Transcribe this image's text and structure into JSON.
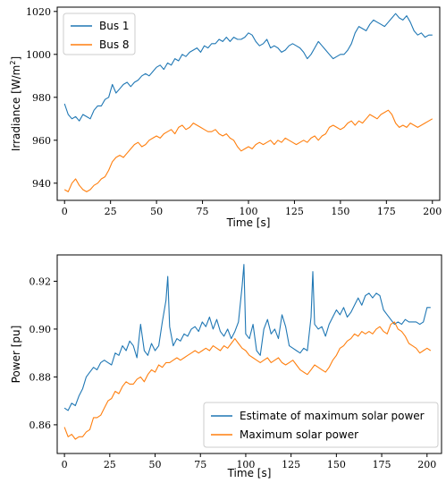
{
  "chart_data": [
    {
      "type": "line",
      "xlabel": "Time [s]",
      "ylabel": "Irradiance [W/m²]",
      "ylabel_main": "Irradiance [W/m",
      "ylabel_sup": "2",
      "ylabel_close": "]",
      "xlim": [
        -4,
        204
      ],
      "ylim": [
        932,
        1022
      ],
      "xticks": [
        0,
        25,
        50,
        75,
        100,
        125,
        150,
        175,
        200
      ],
      "xtick_labels": [
        "0",
        "25",
        "50",
        "75",
        "100",
        "125",
        "150",
        "175",
        "200"
      ],
      "yticks": [
        940,
        960,
        980,
        1000,
        1020
      ],
      "ytick_labels": [
        "940",
        "960",
        "980",
        "1000",
        "1020"
      ],
      "grid": false,
      "legend_position": "top-left",
      "series": [
        {
          "name": "Bus 1",
          "color": "#1f77b4",
          "x": [
            0,
            2,
            4,
            6,
            8,
            10,
            12,
            14,
            16,
            18,
            20,
            22,
            24,
            26,
            28,
            30,
            32,
            34,
            36,
            38,
            40,
            42,
            44,
            46,
            48,
            50,
            52,
            54,
            56,
            58,
            60,
            62,
            64,
            66,
            68,
            70,
            72,
            74,
            76,
            78,
            80,
            82,
            84,
            86,
            88,
            90,
            92,
            94,
            96,
            98,
            100,
            102,
            104,
            106,
            108,
            110,
            112,
            114,
            116,
            118,
            120,
            122,
            124,
            126,
            128,
            130,
            132,
            134,
            136,
            138,
            140,
            142,
            144,
            146,
            148,
            150,
            152,
            154,
            156,
            158,
            160,
            162,
            164,
            166,
            168,
            170,
            172,
            174,
            176,
            178,
            180,
            182,
            184,
            186,
            188,
            190,
            192,
            194,
            196,
            198,
            200
          ],
          "values": [
            977,
            972,
            970,
            971,
            969,
            972,
            971,
            970,
            974,
            976,
            976,
            979,
            980,
            986,
            982,
            984,
            986,
            987,
            985,
            987,
            988,
            990,
            991,
            990,
            992,
            994,
            995,
            993,
            996,
            995,
            998,
            997,
            1000,
            999,
            1001,
            1002,
            1003,
            1001,
            1004,
            1003,
            1005,
            1005,
            1007,
            1006,
            1008,
            1006,
            1008,
            1007,
            1007,
            1008,
            1010,
            1009,
            1006,
            1004,
            1005,
            1007,
            1003,
            1004,
            1003,
            1001,
            1002,
            1004,
            1005,
            1004,
            1003,
            1001,
            998,
            1000,
            1003,
            1006,
            1004,
            1002,
            1000,
            998,
            999,
            1000,
            1000,
            1002,
            1005,
            1010,
            1013,
            1012,
            1011,
            1014,
            1016,
            1015,
            1014,
            1013,
            1015,
            1017,
            1019,
            1017,
            1016,
            1018,
            1015,
            1011,
            1009,
            1010,
            1008,
            1009,
            1009
          ]
        },
        {
          "name": "Bus 8",
          "color": "#ff7f0e",
          "x": [
            0,
            2,
            4,
            6,
            8,
            10,
            12,
            14,
            16,
            18,
            20,
            22,
            24,
            26,
            28,
            30,
            32,
            34,
            36,
            38,
            40,
            42,
            44,
            46,
            48,
            50,
            52,
            54,
            56,
            58,
            60,
            62,
            64,
            66,
            68,
            70,
            72,
            74,
            76,
            78,
            80,
            82,
            84,
            86,
            88,
            90,
            92,
            94,
            96,
            98,
            100,
            102,
            104,
            106,
            108,
            110,
            112,
            114,
            116,
            118,
            120,
            122,
            124,
            126,
            128,
            130,
            132,
            134,
            136,
            138,
            140,
            142,
            144,
            146,
            148,
            150,
            152,
            154,
            156,
            158,
            160,
            162,
            164,
            166,
            168,
            170,
            172,
            174,
            176,
            178,
            180,
            182,
            184,
            186,
            188,
            190,
            192,
            194,
            196,
            198,
            200
          ],
          "values": [
            937,
            936,
            940,
            942,
            939,
            937,
            936,
            937,
            939,
            940,
            942,
            943,
            946,
            950,
            952,
            953,
            952,
            954,
            956,
            958,
            959,
            957,
            958,
            960,
            961,
            962,
            961,
            963,
            964,
            965,
            963,
            966,
            967,
            965,
            966,
            968,
            967,
            966,
            965,
            964,
            964,
            965,
            963,
            962,
            963,
            961,
            960,
            957,
            955,
            956,
            957,
            956,
            958,
            959,
            958,
            959,
            960,
            958,
            960,
            959,
            961,
            960,
            959,
            958,
            959,
            960,
            959,
            961,
            962,
            960,
            962,
            963,
            966,
            967,
            966,
            965,
            966,
            968,
            969,
            967,
            969,
            968,
            970,
            972,
            971,
            970,
            972,
            973,
            974,
            972,
            968,
            966,
            967,
            966,
            968,
            967,
            966,
            967,
            968,
            969,
            970
          ]
        }
      ]
    },
    {
      "type": "line",
      "xlabel": "Time [s]",
      "ylabel": "Power [pu]",
      "xlim": [
        -4,
        208
      ],
      "ylim": [
        0.848,
        0.931
      ],
      "xticks": [
        0,
        25,
        50,
        75,
        100,
        125,
        150,
        175,
        200
      ],
      "xtick_labels": [
        "0",
        "25",
        "50",
        "75",
        "100",
        "125",
        "150",
        "175",
        "200"
      ],
      "yticks": [
        0.86,
        0.88,
        0.9,
        0.92
      ],
      "ytick_labels": [
        "0.86",
        "0.88",
        "0.90",
        "0.92"
      ],
      "grid": false,
      "legend_position": "bottom-right",
      "series": [
        {
          "name": "Estimate of maximum solar power",
          "color": "#1f77b4",
          "x": [
            0,
            2,
            4,
            6,
            8,
            10,
            12,
            14,
            16,
            18,
            20,
            22,
            24,
            26,
            28,
            30,
            32,
            34,
            36,
            38,
            40,
            42,
            44,
            46,
            48,
            50,
            52,
            54,
            56,
            57,
            58,
            60,
            62,
            64,
            66,
            68,
            70,
            72,
            74,
            76,
            78,
            80,
            82,
            84,
            86,
            88,
            90,
            92,
            94,
            96,
            98,
            99,
            100,
            102,
            104,
            106,
            108,
            110,
            112,
            114,
            116,
            118,
            120,
            122,
            124,
            126,
            128,
            130,
            132,
            134,
            136,
            137,
            138,
            140,
            142,
            144,
            146,
            148,
            150,
            152,
            154,
            156,
            158,
            160,
            162,
            164,
            166,
            168,
            170,
            172,
            174,
            176,
            178,
            180,
            182,
            184,
            186,
            188,
            190,
            192,
            194,
            196,
            198,
            200,
            202
          ],
          "values": [
            0.867,
            0.866,
            0.869,
            0.868,
            0.872,
            0.875,
            0.88,
            0.882,
            0.884,
            0.883,
            0.886,
            0.887,
            0.886,
            0.885,
            0.89,
            0.889,
            0.893,
            0.891,
            0.895,
            0.893,
            0.888,
            0.902,
            0.891,
            0.889,
            0.894,
            0.891,
            0.893,
            0.903,
            0.912,
            0.922,
            0.901,
            0.893,
            0.896,
            0.895,
            0.898,
            0.897,
            0.9,
            0.901,
            0.899,
            0.903,
            0.901,
            0.905,
            0.9,
            0.904,
            0.899,
            0.897,
            0.9,
            0.896,
            0.899,
            0.903,
            0.918,
            0.927,
            0.898,
            0.896,
            0.902,
            0.891,
            0.889,
            0.9,
            0.904,
            0.898,
            0.9,
            0.896,
            0.906,
            0.901,
            0.893,
            0.892,
            0.891,
            0.89,
            0.892,
            0.891,
            0.905,
            0.924,
            0.902,
            0.9,
            0.901,
            0.897,
            0.902,
            0.905,
            0.908,
            0.906,
            0.909,
            0.905,
            0.907,
            0.91,
            0.913,
            0.91,
            0.914,
            0.915,
            0.913,
            0.915,
            0.914,
            0.908,
            0.906,
            0.904,
            0.902,
            0.903,
            0.902,
            0.904,
            0.903,
            0.903,
            0.903,
            0.902,
            0.903,
            0.909,
            0.909
          ]
        },
        {
          "name": "Maximum solar power",
          "color": "#ff7f0e",
          "x": [
            0,
            2,
            4,
            6,
            8,
            10,
            12,
            14,
            16,
            18,
            20,
            22,
            24,
            26,
            28,
            30,
            32,
            34,
            36,
            38,
            40,
            42,
            44,
            46,
            48,
            50,
            52,
            54,
            56,
            58,
            60,
            62,
            64,
            66,
            68,
            70,
            72,
            74,
            76,
            78,
            80,
            82,
            84,
            86,
            88,
            90,
            92,
            94,
            96,
            98,
            100,
            102,
            104,
            106,
            108,
            110,
            112,
            114,
            116,
            118,
            120,
            122,
            124,
            126,
            128,
            130,
            132,
            134,
            136,
            138,
            140,
            142,
            144,
            146,
            148,
            150,
            152,
            154,
            156,
            158,
            160,
            162,
            164,
            166,
            168,
            170,
            172,
            174,
            176,
            178,
            180,
            182,
            184,
            186,
            188,
            190,
            192,
            194,
            196,
            198,
            200,
            202
          ],
          "values": [
            0.859,
            0.855,
            0.856,
            0.854,
            0.855,
            0.855,
            0.857,
            0.858,
            0.863,
            0.863,
            0.864,
            0.867,
            0.87,
            0.871,
            0.874,
            0.873,
            0.876,
            0.878,
            0.877,
            0.877,
            0.879,
            0.88,
            0.878,
            0.881,
            0.883,
            0.882,
            0.885,
            0.884,
            0.886,
            0.886,
            0.887,
            0.888,
            0.887,
            0.888,
            0.889,
            0.89,
            0.891,
            0.89,
            0.891,
            0.892,
            0.891,
            0.893,
            0.892,
            0.891,
            0.893,
            0.892,
            0.894,
            0.896,
            0.894,
            0.892,
            0.891,
            0.889,
            0.888,
            0.887,
            0.886,
            0.887,
            0.888,
            0.886,
            0.887,
            0.888,
            0.886,
            0.885,
            0.886,
            0.887,
            0.885,
            0.883,
            0.882,
            0.881,
            0.883,
            0.885,
            0.884,
            0.883,
            0.882,
            0.884,
            0.887,
            0.889,
            0.892,
            0.893,
            0.895,
            0.896,
            0.898,
            0.897,
            0.899,
            0.898,
            0.899,
            0.898,
            0.9,
            0.901,
            0.899,
            0.898,
            0.902,
            0.903,
            0.9,
            0.899,
            0.897,
            0.894,
            0.893,
            0.892,
            0.89,
            0.891,
            0.892,
            0.891
          ]
        }
      ]
    }
  ]
}
